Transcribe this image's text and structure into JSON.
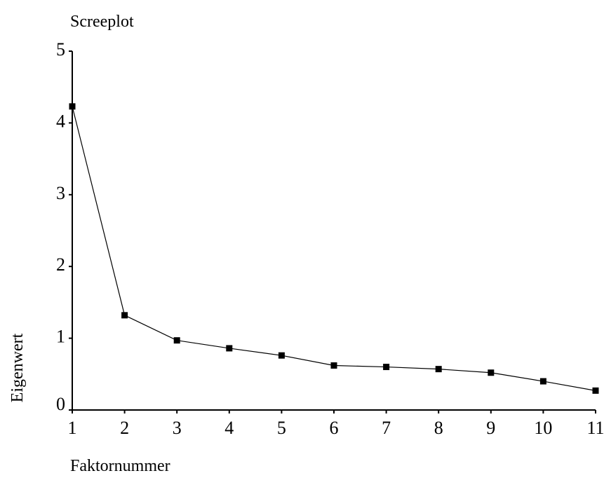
{
  "chart_data": {
    "type": "line",
    "title": "Screeplot",
    "x_label": "Faktornummer",
    "y_label": "Eigenwert",
    "x": [
      1,
      2,
      3,
      4,
      5,
      6,
      7,
      8,
      9,
      10,
      11
    ],
    "values": [
      4.23,
      1.32,
      0.97,
      0.86,
      0.76,
      0.62,
      0.6,
      0.57,
      0.52,
      0.4,
      0.27
    ],
    "color": "#000000",
    "xlim": [
      1,
      11
    ],
    "xticks": [
      1,
      2,
      3,
      4,
      5,
      6,
      7,
      8,
      9,
      10,
      11
    ],
    "ylim": [
      0,
      5
    ],
    "yticks": [
      0,
      1,
      2,
      3,
      4,
      5
    ],
    "grid": false
  }
}
